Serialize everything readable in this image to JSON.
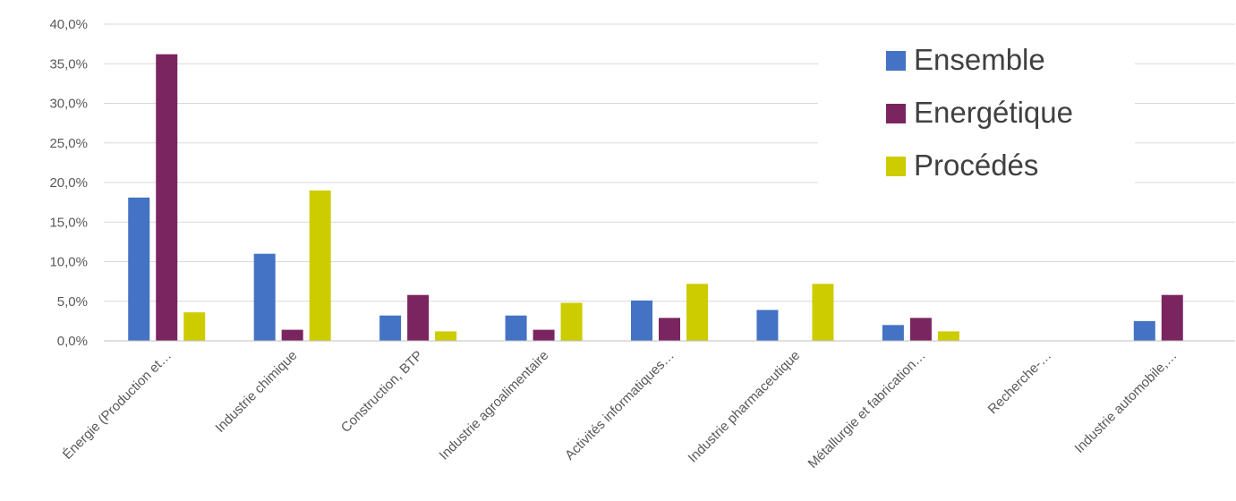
{
  "chart_data": {
    "type": "bar",
    "categories": [
      "Énergie (Production et…",
      "Industrie chimique",
      "Construction, BTP",
      "Industrie agroalimentaire",
      "Activités informatiques…",
      "Industrie pharmaceutique",
      "Métallurgie et fabrication…",
      "Recherche-…",
      "Industrie automobile,…"
    ],
    "series": [
      {
        "name": "Ensemble",
        "color": "#4472C4",
        "values": [
          18.1,
          11.0,
          3.2,
          3.2,
          5.1,
          3.9,
          2.0,
          0,
          2.5
        ]
      },
      {
        "name": "Energétique",
        "color": "#7B2560",
        "values": [
          36.2,
          1.4,
          5.8,
          1.4,
          2.9,
          0,
          2.9,
          0,
          5.8
        ]
      },
      {
        "name": "Procédés",
        "color": "#CCCC00",
        "values": [
          3.6,
          19.0,
          1.2,
          4.8,
          7.2,
          7.2,
          1.2,
          0,
          0
        ]
      }
    ],
    "yticks": [
      "0,0%",
      "5,0%",
      "10,0%",
      "15,0%",
      "20,0%",
      "25,0%",
      "30,0%",
      "35,0%",
      "40,0%"
    ],
    "ylim": [
      0,
      40
    ],
    "grid": true,
    "legend_position": "top-right",
    "gridline_color": "#D9D9D9",
    "axis_color": "#BFBFBF"
  }
}
